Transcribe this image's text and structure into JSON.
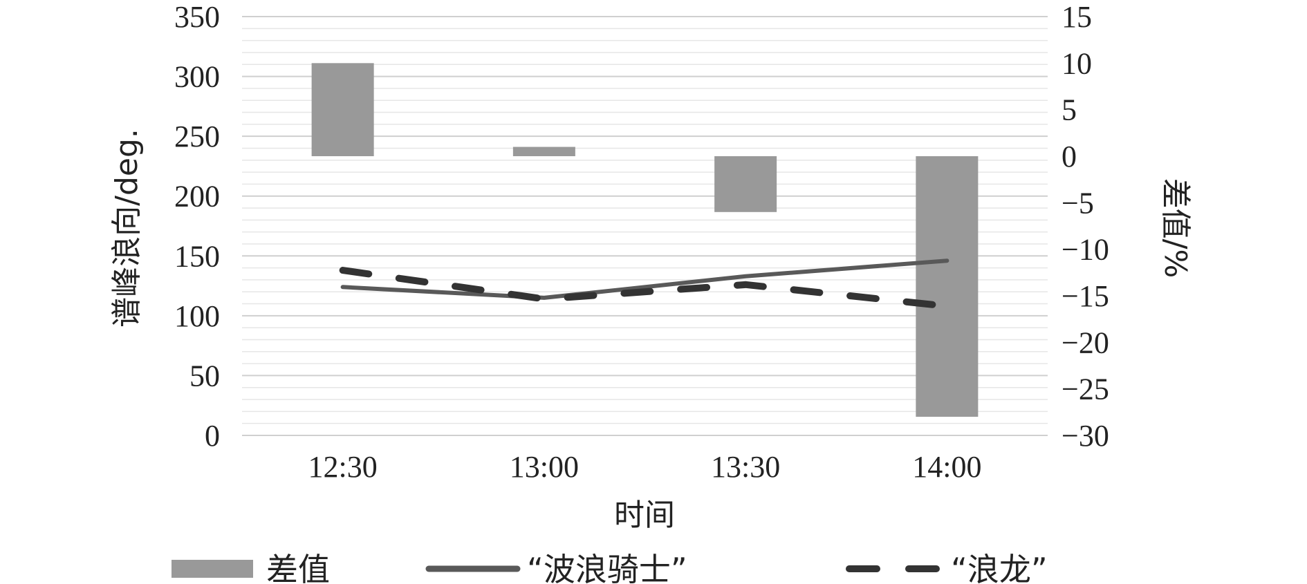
{
  "chart_data": {
    "type": "bar",
    "categories": [
      "12:30",
      "13:00",
      "13:30",
      "14:00"
    ],
    "xlabel": "时间",
    "ylabel_left": "谱峰浪向/deg.",
    "ylabel_right": "差值/%",
    "ylim_left": [
      0,
      350
    ],
    "ylim_right": [
      -30,
      15
    ],
    "yticks_left": [
      "0",
      "50",
      "100",
      "150",
      "200",
      "250",
      "300",
      "350"
    ],
    "yticks_right": [
      "−30",
      "−25",
      "−20",
      "−15",
      "−10",
      "−5",
      "0",
      "5",
      "10",
      "15"
    ],
    "grid": true,
    "legend_position": "bottom",
    "series": [
      {
        "name": "差值",
        "type": "bar",
        "axis": "right",
        "color": "#999999",
        "values": [
          10,
          1,
          -6,
          -28
        ]
      },
      {
        "name": "“波浪骑士”",
        "type": "line",
        "axis": "left",
        "style": "solid",
        "color": "#595959",
        "values": [
          124,
          115,
          133,
          146
        ]
      },
      {
        "name": "“浪龙”",
        "type": "line",
        "axis": "left",
        "style": "dashed",
        "color": "#333333",
        "values": [
          138,
          114,
          126,
          108
        ]
      }
    ]
  }
}
